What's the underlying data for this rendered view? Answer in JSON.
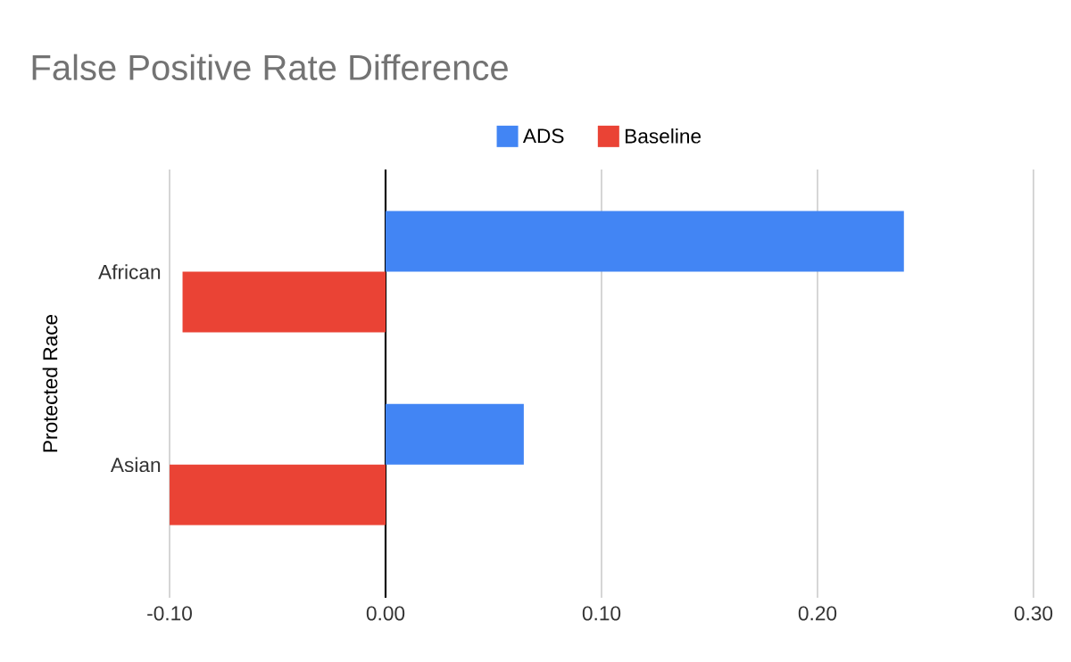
{
  "chart_data": {
    "type": "bar",
    "orientation": "horizontal",
    "title": "False Positive Rate Difference",
    "ylabel": "Protected Race",
    "categories": [
      "African",
      "Asian"
    ],
    "series": [
      {
        "name": "ADS",
        "color": "#4285f4",
        "values": [
          0.24,
          0.064
        ]
      },
      {
        "name": "Baseline",
        "color": "#ea4335",
        "values": [
          -0.094,
          -0.1
        ]
      }
    ],
    "xlim": [
      -0.1,
      0.3
    ],
    "xticks": [
      {
        "value": -0.1,
        "label": "-0.10"
      },
      {
        "value": 0,
        "label": "0.00"
      },
      {
        "value": 0.1,
        "label": "0.10"
      },
      {
        "value": 0.2,
        "label": "0.20"
      },
      {
        "value": 0.3,
        "label": "0.30"
      }
    ],
    "grid": "x",
    "legend": "top"
  }
}
